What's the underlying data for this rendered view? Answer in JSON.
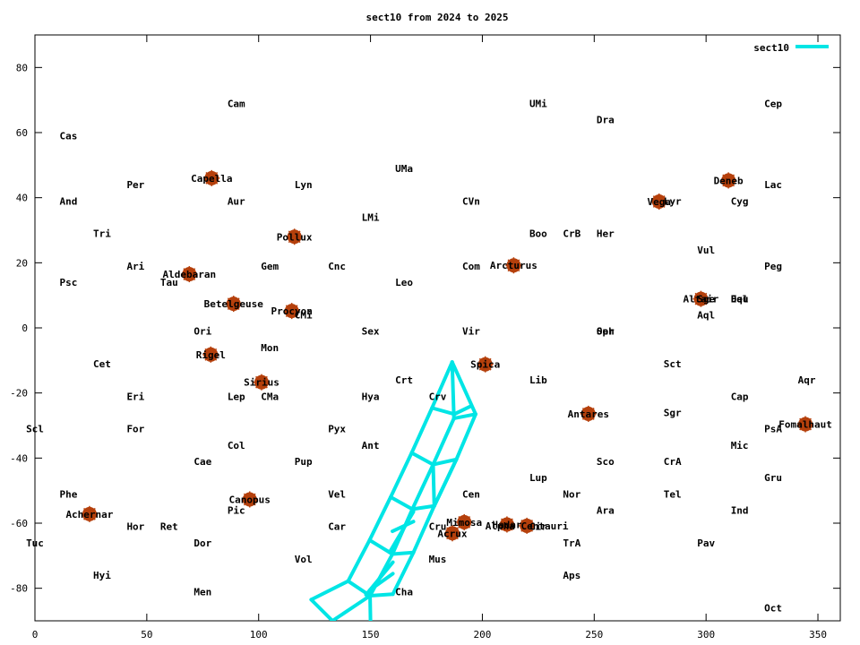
{
  "chart_data": {
    "type": "scatter",
    "title": "sect10 from 2024 to 2025",
    "xlabel": "",
    "ylabel": "",
    "xlim": [
      0,
      360
    ],
    "ylim": [
      -90,
      90
    ],
    "x_ticks": [
      0,
      50,
      100,
      150,
      200,
      250,
      300,
      350
    ],
    "y_ticks": [
      -80,
      -60,
      -40,
      -20,
      0,
      20,
      40,
      60,
      80
    ],
    "grid": false,
    "legend_position": "top-right",
    "colors": {
      "star": "#b5400c",
      "series": "#00e5e5",
      "axis": "#000000",
      "text": "#000000"
    },
    "constellations": [
      {
        "name": "Cam",
        "x": 90,
        "y": 69
      },
      {
        "name": "UMi",
        "x": 225,
        "y": 69
      },
      {
        "name": "Cep",
        "x": 330,
        "y": 69
      },
      {
        "name": "Dra",
        "x": 255,
        "y": 64
      },
      {
        "name": "Cas",
        "x": 15,
        "y": 59
      },
      {
        "name": "UMa",
        "x": 165,
        "y": 49
      },
      {
        "name": "Per",
        "x": 45,
        "y": 44
      },
      {
        "name": "Lyn",
        "x": 120,
        "y": 44
      },
      {
        "name": "Lac",
        "x": 330,
        "y": 44
      },
      {
        "name": "And",
        "x": 15,
        "y": 39
      },
      {
        "name": "Aur",
        "x": 90,
        "y": 39
      },
      {
        "name": "CVn",
        "x": 195,
        "y": 39
      },
      {
        "name": "Lyr",
        "x": 285,
        "y": 39
      },
      {
        "name": "Cyg",
        "x": 315,
        "y": 39
      },
      {
        "name": "LMi",
        "x": 150,
        "y": 34
      },
      {
        "name": "Tri",
        "x": 30,
        "y": 29
      },
      {
        "name": "Boo",
        "x": 225,
        "y": 29
      },
      {
        "name": "CrB",
        "x": 240,
        "y": 29
      },
      {
        "name": "Her",
        "x": 255,
        "y": 29
      },
      {
        "name": "Vul",
        "x": 300,
        "y": 24
      },
      {
        "name": "Ari",
        "x": 45,
        "y": 19
      },
      {
        "name": "Gem",
        "x": 105,
        "y": 19
      },
      {
        "name": "Cnc",
        "x": 135,
        "y": 19
      },
      {
        "name": "Com",
        "x": 195,
        "y": 19
      },
      {
        "name": "Peg",
        "x": 330,
        "y": 19
      },
      {
        "name": "Psc",
        "x": 15,
        "y": 14
      },
      {
        "name": "Tau",
        "x": 60,
        "y": 14
      },
      {
        "name": "Leo",
        "x": 165,
        "y": 14
      },
      {
        "name": "Sge",
        "x": 300,
        "y": 9
      },
      {
        "name": "Del",
        "x": 315,
        "y": 9
      },
      {
        "name": "Equ",
        "x": 315,
        "y": 9
      },
      {
        "name": "CMi",
        "x": 120,
        "y": 4
      },
      {
        "name": "Aql",
        "x": 300,
        "y": 4
      },
      {
        "name": "Ori",
        "x": 75,
        "y": -1
      },
      {
        "name": "Sex",
        "x": 150,
        "y": -1
      },
      {
        "name": "Vir",
        "x": 195,
        "y": -1
      },
      {
        "name": "Oph",
        "x": 255,
        "y": -1
      },
      {
        "name": "Ser",
        "x": 255,
        "y": -1
      },
      {
        "name": "Mon",
        "x": 105,
        "y": -6
      },
      {
        "name": "Cet",
        "x": 30,
        "y": -11
      },
      {
        "name": "Sct",
        "x": 285,
        "y": -11
      },
      {
        "name": "Crt",
        "x": 165,
        "y": -16
      },
      {
        "name": "Lib",
        "x": 225,
        "y": -16
      },
      {
        "name": "Aqr",
        "x": 345,
        "y": -16
      },
      {
        "name": "Eri",
        "x": 45,
        "y": -21
      },
      {
        "name": "Lep",
        "x": 90,
        "y": -21
      },
      {
        "name": "CMa",
        "x": 105,
        "y": -21
      },
      {
        "name": "Hya",
        "x": 150,
        "y": -21
      },
      {
        "name": "Crv",
        "x": 180,
        "y": -21
      },
      {
        "name": "Cap",
        "x": 315,
        "y": -21
      },
      {
        "name": "Sgr",
        "x": 285,
        "y": -26
      },
      {
        "name": "Scl",
        "x": 0,
        "y": -31
      },
      {
        "name": "For",
        "x": 45,
        "y": -31
      },
      {
        "name": "Pyx",
        "x": 135,
        "y": -31
      },
      {
        "name": "PsA",
        "x": 330,
        "y": -31
      },
      {
        "name": "Col",
        "x": 90,
        "y": -36
      },
      {
        "name": "Ant",
        "x": 150,
        "y": -36
      },
      {
        "name": "Mic",
        "x": 315,
        "y": -36
      },
      {
        "name": "Cae",
        "x": 75,
        "y": -41
      },
      {
        "name": "Pup",
        "x": 120,
        "y": -41
      },
      {
        "name": "Sco",
        "x": 255,
        "y": -41
      },
      {
        "name": "CrA",
        "x": 285,
        "y": -41
      },
      {
        "name": "Lup",
        "x": 225,
        "y": -46
      },
      {
        "name": "Gru",
        "x": 330,
        "y": -46
      },
      {
        "name": "Phe",
        "x": 15,
        "y": -51
      },
      {
        "name": "Vel",
        "x": 135,
        "y": -51
      },
      {
        "name": "Cen",
        "x": 195,
        "y": -51
      },
      {
        "name": "Nor",
        "x": 240,
        "y": -51
      },
      {
        "name": "Tel",
        "x": 285,
        "y": -51
      },
      {
        "name": "Pic",
        "x": 90,
        "y": -56
      },
      {
        "name": "Ara",
        "x": 255,
        "y": -56
      },
      {
        "name": "Ind",
        "x": 315,
        "y": -56
      },
      {
        "name": "Hor",
        "x": 45,
        "y": -61
      },
      {
        "name": "Ret",
        "x": 60,
        "y": -61
      },
      {
        "name": "Car",
        "x": 135,
        "y": -61
      },
      {
        "name": "Cru",
        "x": 180,
        "y": -61
      },
      {
        "name": "Cir",
        "x": 225,
        "y": -61
      },
      {
        "name": "Tuc",
        "x": 0,
        "y": -66
      },
      {
        "name": "Dor",
        "x": 75,
        "y": -66
      },
      {
        "name": "TrA",
        "x": 240,
        "y": -66
      },
      {
        "name": "Pav",
        "x": 300,
        "y": -66
      },
      {
        "name": "Vol",
        "x": 120,
        "y": -71
      },
      {
        "name": "Mus",
        "x": 180,
        "y": -71
      },
      {
        "name": "Hyi",
        "x": 30,
        "y": -76
      },
      {
        "name": "Aps",
        "x": 240,
        "y": -76
      },
      {
        "name": "Men",
        "x": 75,
        "y": -81
      },
      {
        "name": "Cha",
        "x": 165,
        "y": -81
      },
      {
        "name": "Oct",
        "x": 330,
        "y": -86
      }
    ],
    "stars": [
      {
        "name": "Capella",
        "x": 79,
        "y": 46
      },
      {
        "name": "Deneb",
        "x": 310,
        "y": 45.3
      },
      {
        "name": "Vega",
        "x": 279,
        "y": 38.8
      },
      {
        "name": "Pollux",
        "x": 116,
        "y": 28
      },
      {
        "name": "Arcturus",
        "x": 214,
        "y": 19.2
      },
      {
        "name": "Aldebaran",
        "x": 69,
        "y": 16.5
      },
      {
        "name": "Altair",
        "x": 297.7,
        "y": 8.9
      },
      {
        "name": "Betelgeuse",
        "x": 88.8,
        "y": 7.4
      },
      {
        "name": "Procyon",
        "x": 114.8,
        "y": 5.2
      },
      {
        "name": "Rigel",
        "x": 78.6,
        "y": -8.2
      },
      {
        "name": "Spica",
        "x": 201.3,
        "y": -11.2
      },
      {
        "name": "Sirius",
        "x": 101.3,
        "y": -16.7
      },
      {
        "name": "Antares",
        "x": 247.4,
        "y": -26.4
      },
      {
        "name": "Fomalhaut",
        "x": 344.4,
        "y": -29.6
      },
      {
        "name": "Canopus",
        "x": 96,
        "y": -52.7
      },
      {
        "name": "Achernar",
        "x": 24.4,
        "y": -57.2
      },
      {
        "name": "Mimosa",
        "x": 191.9,
        "y": -59.7
      },
      {
        "name": "Hadar",
        "x": 211,
        "y": -60.4
      },
      {
        "name": "Alpha Centauri",
        "x": 219.9,
        "y": -60.8
      },
      {
        "name": "Acrux",
        "x": 186.6,
        "y": -63.1
      }
    ],
    "series": [
      {
        "name": "sect10",
        "segments": [
          [
            [
              186.5,
              -10.5
            ],
            [
              197,
              -26.5
            ]
          ],
          [
            [
              177.5,
              -24.6
            ],
            [
              186.5,
              -10.5
            ]
          ],
          [
            [
              186.5,
              -10.5
            ],
            [
              187.3,
              -27.8
            ]
          ],
          [
            [
              187.3,
              -27.8
            ],
            [
              197,
              -26.5
            ]
          ],
          [
            [
              177.5,
              -24.6
            ],
            [
              187.5,
              -26.5
            ]
          ],
          [
            [
              187.5,
              -26.5
            ],
            [
              195,
              -24
            ]
          ],
          [
            [
              177.5,
              -24.6
            ],
            [
              168.4,
              -38.4
            ]
          ],
          [
            [
              187.3,
              -27.8
            ],
            [
              178,
              -42
            ]
          ],
          [
            [
              197,
              -26.5
            ],
            [
              188.4,
              -40.4
            ]
          ],
          [
            [
              168.4,
              -38.4
            ],
            [
              178,
              -42
            ]
          ],
          [
            [
              178,
              -42
            ],
            [
              188.4,
              -40.4
            ]
          ],
          [
            [
              178,
              -42
            ],
            [
              178.5,
              -54.7
            ]
          ],
          [
            [
              188.4,
              -40.4
            ],
            [
              178.5,
              -54.7
            ]
          ],
          [
            [
              168.4,
              -38.4
            ],
            [
              159,
              -52
            ]
          ],
          [
            [
              178,
              -42
            ],
            [
              168.7,
              -55.7
            ]
          ],
          [
            [
              188.4,
              -40.4
            ],
            [
              178.5,
              -54.7
            ]
          ],
          [
            [
              159,
              -52
            ],
            [
              168.7,
              -55.7
            ]
          ],
          [
            [
              168.7,
              -55.7
            ],
            [
              178.5,
              -54.7
            ]
          ],
          [
            [
              159,
              -52
            ],
            [
              149.6,
              -65.2
            ]
          ],
          [
            [
              168.7,
              -55.7
            ],
            [
              159.8,
              -69.5
            ]
          ],
          [
            [
              178.5,
              -54.7
            ],
            [
              169.2,
              -69
            ]
          ],
          [
            [
              149.6,
              -65.2
            ],
            [
              159.8,
              -69.5
            ]
          ],
          [
            [
              159.8,
              -69.5
            ],
            [
              169.2,
              -69
            ]
          ],
          [
            [
              159.8,
              -62.5
            ],
            [
              169.2,
              -59.5
            ]
          ],
          [
            [
              158.5,
              -69
            ],
            [
              169.2,
              -56.5
            ]
          ],
          [
            [
              149.6,
              -65.2
            ],
            [
              140,
              -77.8
            ]
          ],
          [
            [
              159.8,
              -69.5
            ],
            [
              149.8,
              -82.3
            ]
          ],
          [
            [
              169.2,
              -69
            ],
            [
              160,
              -81.8
            ]
          ],
          [
            [
              140,
              -77.8
            ],
            [
              149.8,
              -82.3
            ]
          ],
          [
            [
              149.8,
              -82.3
            ],
            [
              160,
              -81.8
            ]
          ],
          [
            [
              149.8,
              -80.5
            ],
            [
              160,
              -75.5
            ]
          ],
          [
            [
              148,
              -82
            ],
            [
              160,
              -72
            ]
          ],
          [
            [
              140,
              -77.8
            ],
            [
              123.5,
              -83.5
            ]
          ],
          [
            [
              123.5,
              -83.5
            ],
            [
              133,
              -90
            ]
          ],
          [
            [
              133,
              -90
            ],
            [
              149.8,
              -82.3
            ]
          ],
          [
            [
              149.8,
              -82.3
            ],
            [
              150,
              -90
            ]
          ]
        ]
      }
    ]
  }
}
